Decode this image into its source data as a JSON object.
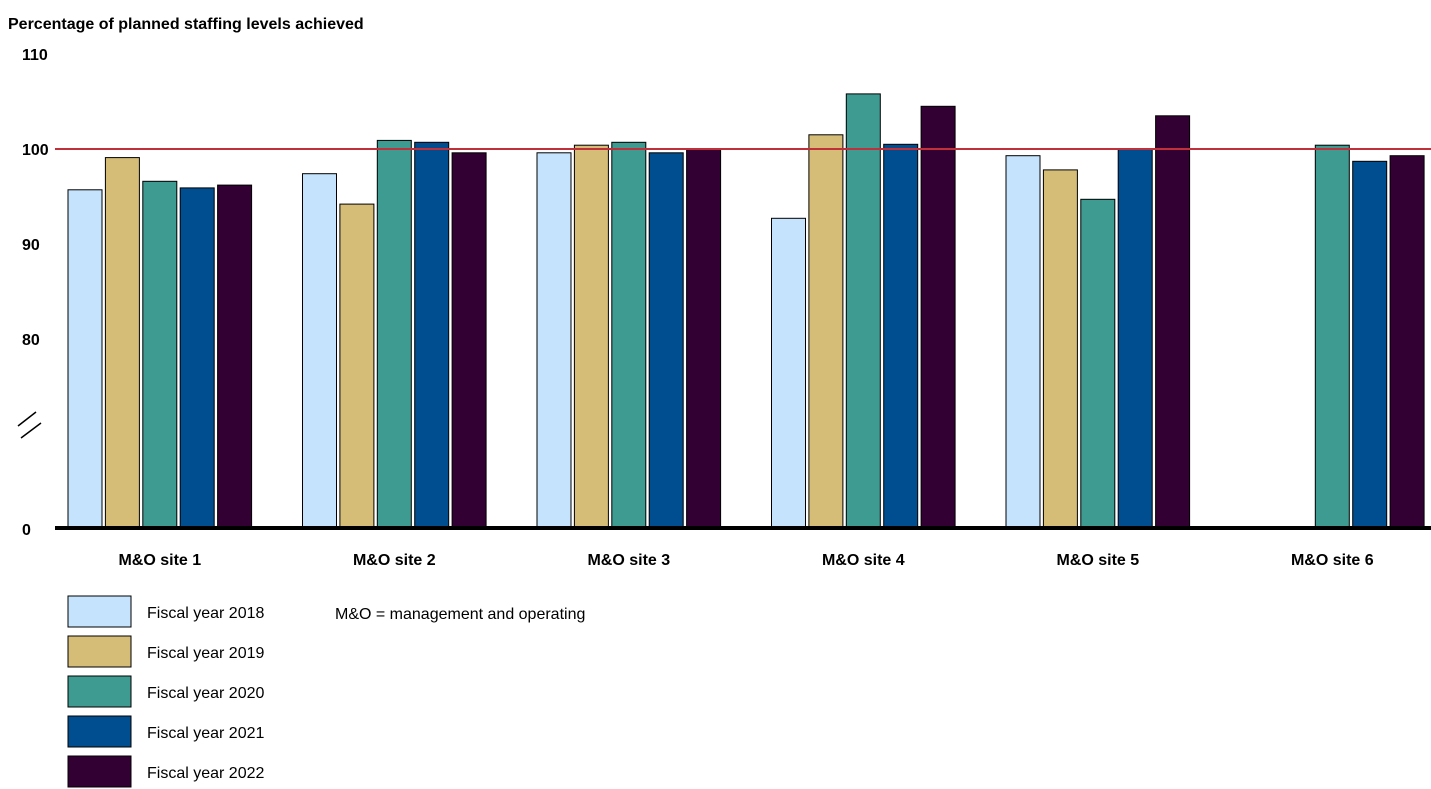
{
  "chart_data": {
    "type": "bar",
    "ylabel": "Percentage of planned staffing levels achieved",
    "categories": [
      "M&O site 1",
      "M&O site 2",
      "M&O site 3",
      "M&O site 4",
      "M&O site 5",
      "M&O site 6"
    ],
    "series": [
      {
        "name": "Fiscal year 2018",
        "color": "#c5e3fc",
        "values": [
          95.7,
          97.4,
          99.6,
          92.7,
          99.3,
          null
        ]
      },
      {
        "name": "Fiscal year 2019",
        "color": "#d6bd77",
        "values": [
          99.1,
          94.2,
          100.4,
          101.5,
          97.8,
          null
        ]
      },
      {
        "name": "Fiscal year 2020",
        "color": "#3e9b92",
        "values": [
          96.6,
          100.9,
          100.7,
          105.8,
          94.7,
          100.4
        ]
      },
      {
        "name": "Fiscal year 2021",
        "color": "#004e8f",
        "values": [
          95.9,
          100.7,
          99.6,
          100.5,
          100.0,
          98.7
        ]
      },
      {
        "name": "Fiscal year 2022",
        "color": "#330033",
        "values": [
          96.2,
          99.6,
          100.0,
          104.5,
          103.5,
          99.3
        ]
      }
    ],
    "y_ticks": [
      "110",
      "100",
      "90",
      "80",
      "0"
    ],
    "yaxis_break": "between 0 and 80",
    "reference_line": {
      "value": 100,
      "color": "#c0303a"
    },
    "legend_position": "bottom-left",
    "note": "M&O = management and operating"
  }
}
